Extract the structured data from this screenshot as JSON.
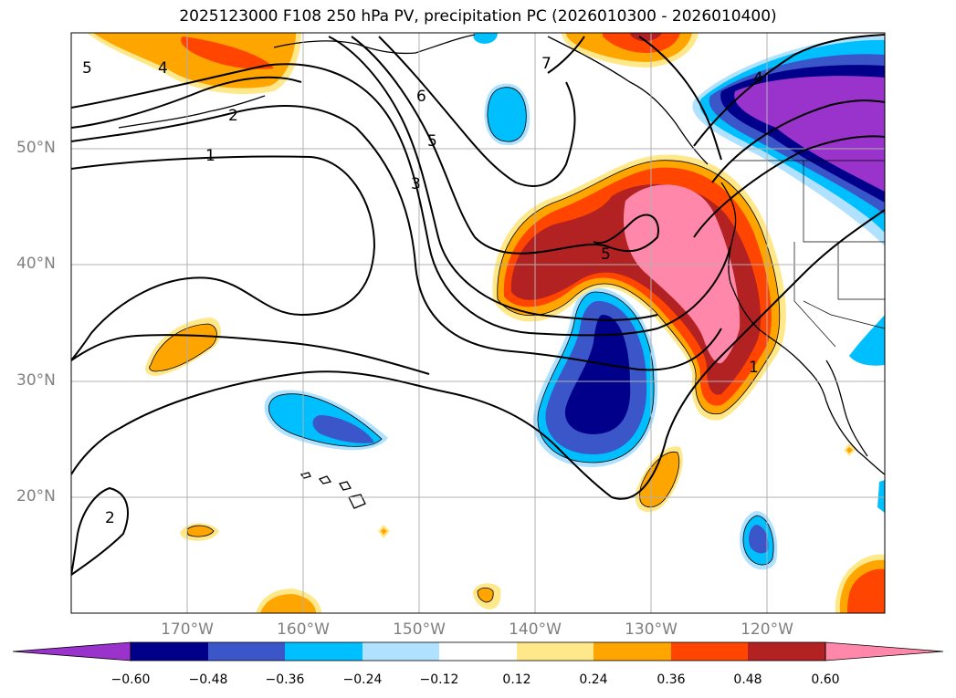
{
  "title": "2025123000 F108 250 hPa PV, precipitation PC (2026010300 - 2026010400)",
  "lat_labels": [
    "50°N",
    "40°N",
    "30°N",
    "20°N"
  ],
  "lon_labels": [
    "170°W",
    "160°W",
    "150°W",
    "140°W",
    "130°W",
    "120°W"
  ],
  "contour_labels": [
    "1",
    "2",
    "3",
    "4",
    "5",
    "6",
    "7",
    "5",
    "4",
    "5",
    "2",
    "1"
  ],
  "colorbar": {
    "ticks": [
      "−0.60",
      "−0.48",
      "−0.36",
      "−0.24",
      "−0.12",
      "0.12",
      "0.24",
      "0.36",
      "0.48",
      "0.60"
    ],
    "colors": [
      "#9933cc",
      "#00008b",
      "#3a56c8",
      "#00bfff",
      "#b0e2ff",
      "#ffffff",
      "#ffe88a",
      "#ffa500",
      "#ff4500",
      "#b22222",
      "#ff88aa"
    ]
  },
  "colors": {
    "neg_extreme": "#9933cc",
    "neg_strong": "#00008b",
    "neg_mid": "#3a56c8",
    "neg_light": "#00bfff",
    "neg_pale": "#b0e2ff",
    "pos_pale": "#ffe88a",
    "pos_light": "#ffa500",
    "pos_mid": "#ff4500",
    "pos_strong": "#b22222",
    "pos_extreme": "#ff88aa"
  }
}
